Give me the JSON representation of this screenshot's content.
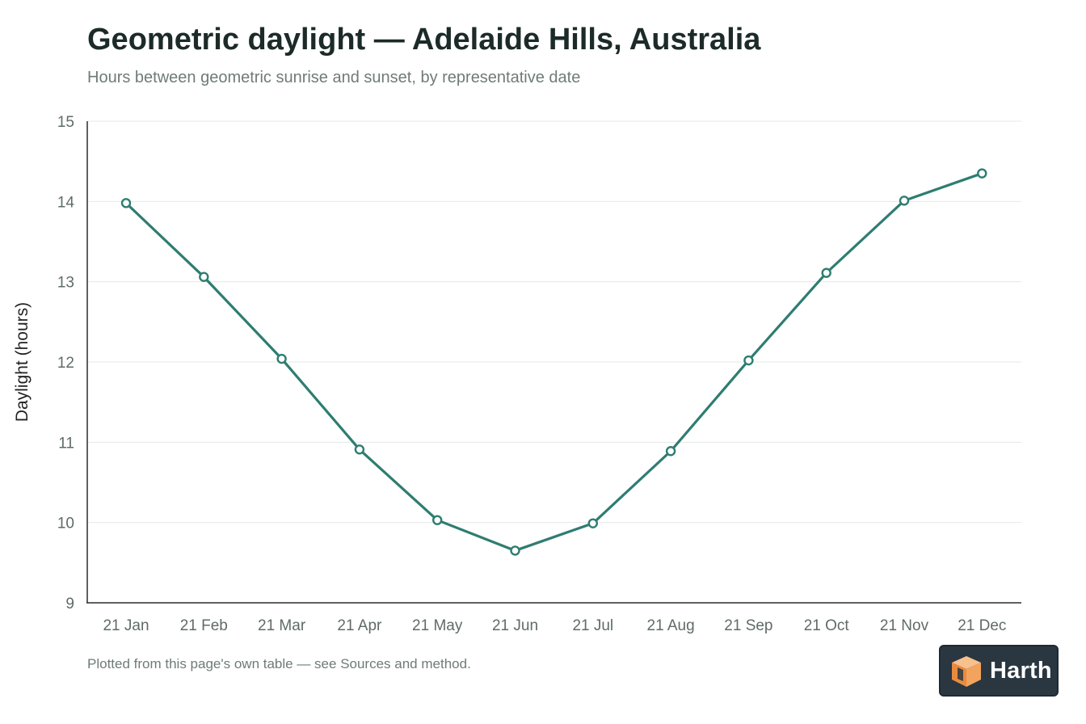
{
  "header": {
    "title": "Geometric daylight — Adelaide Hills, Australia",
    "subtitle": "Hours between geometric sunrise and sunset, by representative date"
  },
  "chart_data": {
    "type": "line",
    "title": "Geometric daylight — Adelaide Hills, Australia",
    "subtitle": "Hours between geometric sunrise and sunset, by representative date",
    "xlabel": "",
    "ylabel": "Daylight (hours)",
    "categories": [
      "21 Jan",
      "21 Feb",
      "21 Mar",
      "21 Apr",
      "21 May",
      "21 Jun",
      "21 Jul",
      "21 Aug",
      "21 Sep",
      "21 Oct",
      "21 Nov",
      "21 Dec"
    ],
    "values": [
      13.98,
      13.06,
      12.04,
      10.91,
      10.03,
      9.65,
      9.99,
      10.89,
      12.02,
      13.11,
      14.01,
      14.35
    ],
    "ylim": [
      9,
      15
    ],
    "yticks": [
      9,
      10,
      11,
      12,
      13,
      14,
      15
    ],
    "grid": true,
    "legend": "none",
    "color": "#2e7d71"
  },
  "footnote": "Plotted from this page's own table — see Sources and method.",
  "logo": {
    "text": "Harth",
    "icon": "cube-logo-icon",
    "background": "#2a3640",
    "accent": "#f2a35e"
  }
}
